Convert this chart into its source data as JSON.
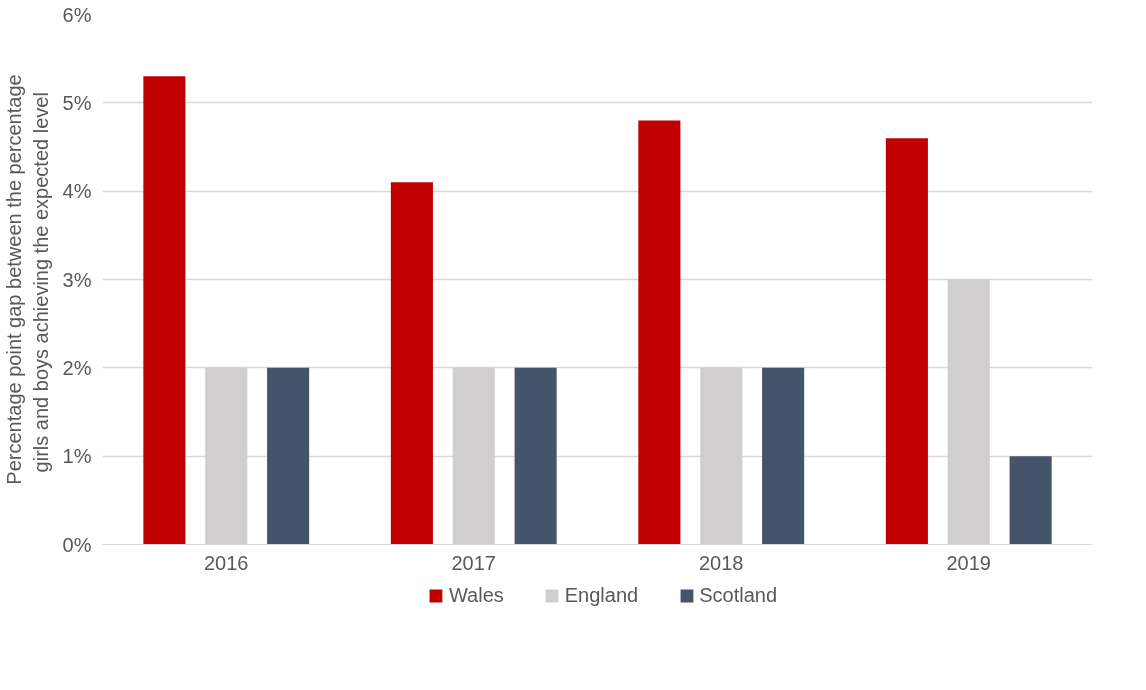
{
  "chart_data": {
    "type": "bar",
    "ylabel": "Percentage point gap between the percentage\ngirls and boys achieving the  expected level",
    "categories": [
      "2016",
      "2017",
      "2018",
      "2019"
    ],
    "series": [
      {
        "name": "Wales",
        "color": "#c00000",
        "values": [
          5.3,
          4.1,
          4.8,
          4.6
        ]
      },
      {
        "name": "England",
        "color": "#d0cece",
        "values": [
          2,
          2,
          2,
          3
        ]
      },
      {
        "name": "Scotland",
        "color": "#44546a",
        "values": [
          2,
          2,
          2,
          1
        ]
      }
    ],
    "ylim": [
      0,
      6
    ],
    "yticks": [
      {
        "value": 0,
        "label": "0%"
      },
      {
        "value": 1,
        "label": "1%"
      },
      {
        "value": 2,
        "label": "2%"
      },
      {
        "value": 3,
        "label": "3%"
      },
      {
        "value": 4,
        "label": "4%"
      },
      {
        "value": 5,
        "label": "5%"
      },
      {
        "value": 6,
        "label": "6%"
      }
    ],
    "grid": "y",
    "legend": "bottom"
  }
}
